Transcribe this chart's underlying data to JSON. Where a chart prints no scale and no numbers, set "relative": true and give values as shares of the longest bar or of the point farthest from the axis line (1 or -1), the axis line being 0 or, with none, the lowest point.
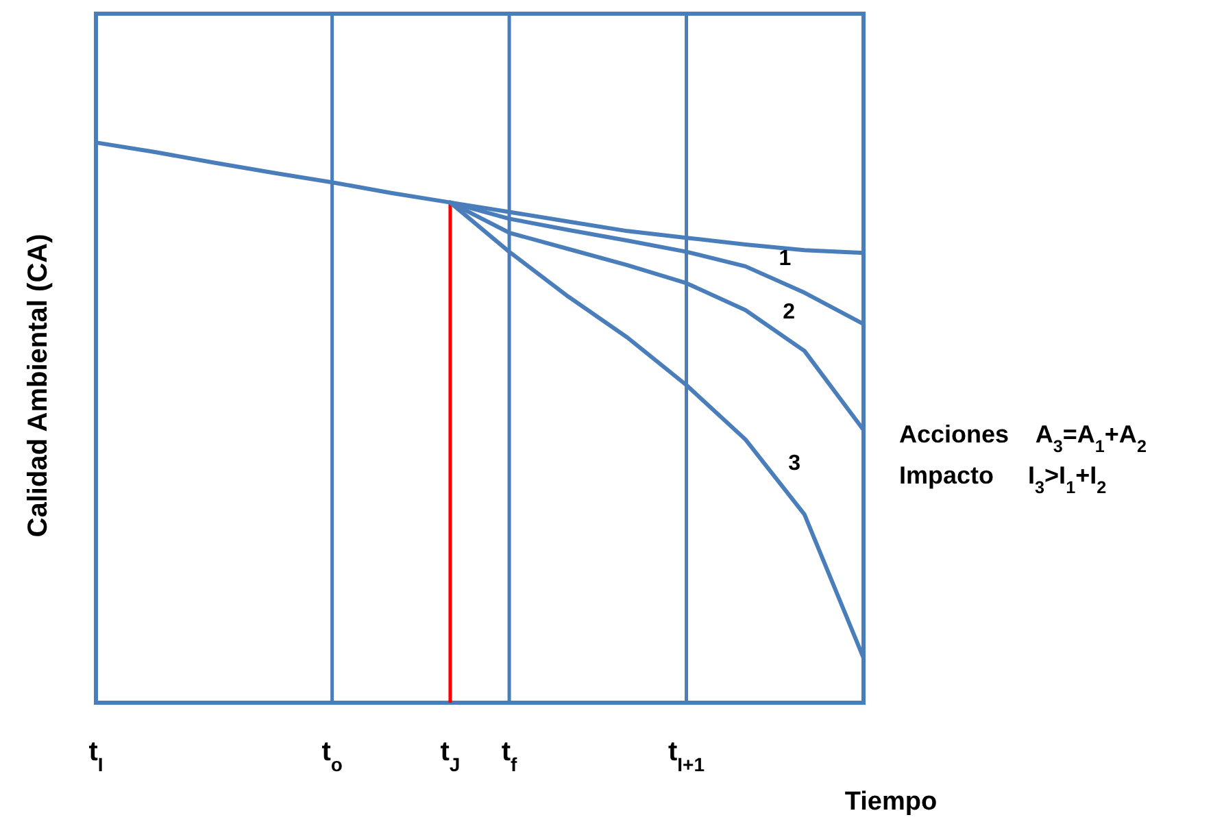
{
  "chart_data": {
    "type": "line",
    "relative": true,
    "xlabel": "Tiempo",
    "ylabel": "Calidad Ambiental (CA)",
    "categories": [
      "t$_{I}$",
      null,
      null,
      null,
      "t$_{o}$",
      null,
      "t$_{J}$",
      "t$_{f}$",
      null,
      null,
      "t$_{I+1}$",
      null,
      null,
      null
    ],
    "ref_lines": [
      {
        "axis": "x",
        "value": "t$_{o}$",
        "color": "#4a7ebb"
      },
      {
        "axis": "x",
        "value": "t$_{J}$",
        "color": "#ff0000"
      },
      {
        "axis": "x",
        "value": "t$_{f}$",
        "color": "#4a7ebb"
      },
      {
        "axis": "x",
        "value": "t$_{I+1}$",
        "color": "#4a7ebb"
      }
    ],
    "series": [
      {
        "color": "#4a7ebb",
        "values": [
          1,
          0.983,
          0.964,
          0.946,
          0.929,
          0.91,
          0.893,
          0.876,
          0.859,
          0.842,
          0.83,
          0.818,
          0.808,
          0.803
        ]
      },
      {
        "name": "1",
        "color": "#4a7ebb",
        "values": [
          null,
          null,
          null,
          null,
          null,
          null,
          0.893,
          0.864,
          0.844,
          0.825,
          0.805,
          0.779,
          0.732,
          0.676
        ]
      },
      {
        "name": "2",
        "color": "#4a7ebb",
        "values": [
          null,
          null,
          null,
          null,
          null,
          null,
          0.893,
          0.839,
          0.81,
          0.781,
          0.749,
          0.701,
          0.628,
          0.487
        ]
      },
      {
        "name": "3",
        "color": "#4a7ebb",
        "values": [
          null,
          null,
          null,
          null,
          null,
          null,
          0.893,
          0.805,
          0.725,
          0.652,
          0.567,
          0.47,
          0.336,
          0.08
        ]
      }
    ],
    "annotations": [
      "Acciones    A$_{3}$=A$_{1}$+A$_{2}$",
      "Impacto     I$_{3}$>I$_{1}$+I$_{2}$"
    ]
  }
}
